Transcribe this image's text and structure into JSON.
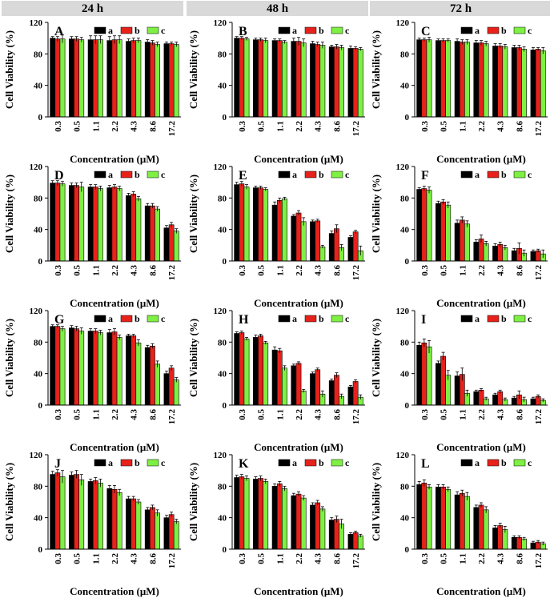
{
  "column_headers": [
    "24 h",
    "48 h",
    "72 h"
  ],
  "chart_data": [
    {
      "type": "bar",
      "label": "A",
      "ylabel": "Cell Viability (%)",
      "xlabel": "Concentration (μM)",
      "categories": [
        "0.3",
        "0.5",
        "1.1",
        "2.2",
        "4.3",
        "8.6",
        "17.2"
      ],
      "ylim": [
        0,
        120
      ],
      "yticks": [
        0,
        40,
        80,
        120
      ],
      "series": [
        {
          "name": "a",
          "color": "#000000",
          "values": [
            100,
            99,
            98,
            97,
            96,
            95,
            93
          ],
          "errors": [
            2,
            3,
            5,
            5,
            3,
            3,
            2
          ]
        },
        {
          "name": "b",
          "color": "#e8211b",
          "values": [
            99,
            99,
            98,
            98,
            97,
            94,
            93
          ],
          "errors": [
            3,
            3,
            5,
            5,
            3,
            3,
            2
          ]
        },
        {
          "name": "c",
          "color": "#7ef043",
          "values": [
            99,
            98,
            98,
            98,
            97,
            92,
            92
          ],
          "errors": [
            5,
            3,
            5,
            5,
            3,
            3,
            3
          ]
        }
      ]
    },
    {
      "type": "bar",
      "label": "B",
      "ylabel": "Cell Viability (%)",
      "xlabel": "Concentration (μM)",
      "categories": [
        "0.3",
        "0.5",
        "1.1",
        "2.2",
        "4.3",
        "8.6",
        "17.2"
      ],
      "ylim": [
        0,
        120
      ],
      "yticks": [
        0,
        40,
        80,
        120
      ],
      "series": [
        {
          "name": "a",
          "color": "#000000",
          "values": [
            100,
            98,
            97,
            96,
            93,
            89,
            87
          ],
          "errors": [
            2,
            2,
            2,
            4,
            3,
            2,
            3
          ]
        },
        {
          "name": "b",
          "color": "#e8211b",
          "values": [
            100,
            98,
            97,
            96,
            92,
            89,
            87
          ],
          "errors": [
            2,
            2,
            2,
            5,
            3,
            3,
            2
          ]
        },
        {
          "name": "c",
          "color": "#7ef043",
          "values": [
            99,
            97,
            95,
            94,
            91,
            88,
            86
          ],
          "errors": [
            2,
            3,
            2,
            5,
            4,
            3,
            2
          ]
        }
      ]
    },
    {
      "type": "bar",
      "label": "C",
      "ylabel": "Cell Viability (%)",
      "xlabel": "Concentration (μM)",
      "categories": [
        "0.3",
        "0.5",
        "1.1",
        "2.2",
        "4.3",
        "8.6",
        "17.2"
      ],
      "ylim": [
        0,
        120
      ],
      "yticks": [
        0,
        40,
        80,
        120
      ],
      "series": [
        {
          "name": "a",
          "color": "#000000",
          "values": [
            98,
            97,
            96,
            94,
            90,
            88,
            85
          ],
          "errors": [
            2,
            2,
            3,
            3,
            3,
            3,
            3
          ]
        },
        {
          "name": "b",
          "color": "#e8211b",
          "values": [
            98,
            97,
            95,
            94,
            90,
            88,
            86
          ],
          "errors": [
            2,
            2,
            3,
            3,
            3,
            3,
            2
          ]
        },
        {
          "name": "c",
          "color": "#7ef043",
          "values": [
            98,
            97,
            95,
            93,
            89,
            86,
            84
          ],
          "errors": [
            3,
            2,
            3,
            3,
            3,
            3,
            4
          ]
        }
      ]
    },
    {
      "type": "bar",
      "label": "D",
      "ylabel": "Cell Viability (%)",
      "xlabel": "Concentration (μM)",
      "categories": [
        "0.3",
        "0.5",
        "1.1",
        "2.2",
        "4.3",
        "8.6",
        "17.2"
      ],
      "ylim": [
        0,
        120
      ],
      "yticks": [
        0,
        40,
        80,
        120
      ],
      "series": [
        {
          "name": "a",
          "color": "#000000",
          "values": [
            99,
            96,
            94,
            93,
            83,
            70,
            42
          ],
          "errors": [
            3,
            3,
            3,
            3,
            3,
            3,
            3
          ]
        },
        {
          "name": "b",
          "color": "#e8211b",
          "values": [
            99,
            96,
            94,
            94,
            85,
            70,
            46
          ],
          "errors": [
            3,
            3,
            3,
            3,
            3,
            3,
            3
          ]
        },
        {
          "name": "c",
          "color": "#7ef043",
          "values": [
            98,
            94,
            92,
            92,
            79,
            66,
            38
          ],
          "errors": [
            3,
            6,
            3,
            3,
            3,
            3,
            3
          ]
        }
      ]
    },
    {
      "type": "bar",
      "label": "E",
      "ylabel": "Cell Viability (%)",
      "xlabel": "Concentration (μM)",
      "categories": [
        "0.3",
        "0.5",
        "1.1",
        "2.2",
        "4.3",
        "8.6",
        "17.2"
      ],
      "ylim": [
        0,
        120
      ],
      "yticks": [
        0,
        40,
        80,
        120
      ],
      "series": [
        {
          "name": "a",
          "color": "#000000",
          "values": [
            97,
            93,
            71,
            57,
            50,
            35,
            30
          ],
          "errors": [
            3,
            2,
            4,
            2,
            2,
            3,
            2
          ]
        },
        {
          "name": "b",
          "color": "#e8211b",
          "values": [
            98,
            93,
            77,
            61,
            51,
            41,
            37
          ],
          "errors": [
            3,
            2,
            3,
            3,
            2,
            5,
            2
          ]
        },
        {
          "name": "c",
          "color": "#7ef043",
          "values": [
            94,
            91,
            79,
            50,
            18,
            17,
            13
          ],
          "errors": [
            3,
            2,
            2,
            5,
            2,
            4,
            6
          ]
        }
      ]
    },
    {
      "type": "bar",
      "label": "F",
      "ylabel": "Cell Viability (%)",
      "xlabel": "Concentration (μM)",
      "categories": [
        "0.3",
        "0.5",
        "1.1",
        "2.2",
        "4.3",
        "8.6",
        "17.2"
      ],
      "ylim": [
        0,
        120
      ],
      "yticks": [
        0,
        40,
        80,
        120
      ],
      "series": [
        {
          "name": "a",
          "color": "#000000",
          "values": [
            91,
            73,
            48,
            24,
            19,
            13,
            12
          ],
          "errors": [
            2,
            3,
            4,
            3,
            3,
            3,
            2
          ]
        },
        {
          "name": "b",
          "color": "#e8211b",
          "values": [
            92,
            75,
            52,
            28,
            21,
            16,
            13
          ],
          "errors": [
            3,
            3,
            4,
            5,
            3,
            7,
            2
          ]
        },
        {
          "name": "c",
          "color": "#7ef043",
          "values": [
            90,
            71,
            47,
            22,
            17,
            10,
            9
          ],
          "errors": [
            4,
            4,
            4,
            3,
            3,
            4,
            5
          ]
        }
      ]
    },
    {
      "type": "bar",
      "label": "G",
      "ylabel": "Cell Viability (%)",
      "xlabel": "Concentration (μM)",
      "categories": [
        "0.3",
        "0.5",
        "1.1",
        "2.2",
        "4.3",
        "8.6",
        "17.2"
      ],
      "ylim": [
        0,
        120
      ],
      "yticks": [
        0,
        40,
        80,
        120
      ],
      "series": [
        {
          "name": "a",
          "color": "#000000",
          "values": [
            100,
            98,
            94,
            92,
            88,
            73,
            40
          ],
          "errors": [
            2,
            3,
            3,
            4,
            2,
            3,
            3
          ]
        },
        {
          "name": "b",
          "color": "#e8211b",
          "values": [
            100,
            97,
            94,
            93,
            88,
            75,
            47
          ],
          "errors": [
            2,
            3,
            3,
            4,
            2,
            3,
            3
          ]
        },
        {
          "name": "c",
          "color": "#7ef043",
          "values": [
            97,
            94,
            92,
            86,
            79,
            52,
            32
          ],
          "errors": [
            3,
            4,
            3,
            3,
            4,
            4,
            3
          ]
        }
      ]
    },
    {
      "type": "bar",
      "label": "H",
      "ylabel": "Cell Viability (%)",
      "xlabel": "Concentration (μM)",
      "categories": [
        "0.3",
        "0.5",
        "1.1",
        "2.2",
        "4.3",
        "8.6",
        "17.2"
      ],
      "ylim": [
        0,
        120
      ],
      "yticks": [
        0,
        40,
        80,
        120
      ],
      "series": [
        {
          "name": "a",
          "color": "#000000",
          "values": [
            91,
            86,
            70,
            50,
            40,
            31,
            23
          ],
          "errors": [
            2,
            3,
            4,
            2,
            2,
            2,
            2
          ]
        },
        {
          "name": "b",
          "color": "#e8211b",
          "values": [
            92,
            88,
            69,
            53,
            45,
            38,
            30
          ],
          "errors": [
            2,
            2,
            3,
            2,
            2,
            3,
            2
          ]
        },
        {
          "name": "c",
          "color": "#7ef043",
          "values": [
            84,
            79,
            47,
            18,
            14,
            11,
            10
          ],
          "errors": [
            2,
            2,
            3,
            2,
            4,
            3,
            3
          ]
        }
      ]
    },
    {
      "type": "bar",
      "label": "I",
      "ylabel": "Cell Viability (%)",
      "xlabel": "Concentration (μM)",
      "categories": [
        "0.3",
        "0.5",
        "1.1",
        "2.2",
        "4.3",
        "8.6",
        "17.2"
      ],
      "ylim": [
        0,
        120
      ],
      "yticks": [
        0,
        40,
        80,
        120
      ],
      "series": [
        {
          "name": "a",
          "color": "#000000",
          "values": [
            76,
            53,
            37,
            17,
            13,
            9,
            8
          ],
          "errors": [
            4,
            3,
            5,
            2,
            2,
            2,
            2
          ]
        },
        {
          "name": "b",
          "color": "#e8211b",
          "values": [
            79,
            62,
            39,
            19,
            17,
            13,
            11
          ],
          "errors": [
            5,
            5,
            8,
            2,
            2,
            5,
            2
          ]
        },
        {
          "name": "c",
          "color": "#7ef043",
          "values": [
            74,
            38,
            15,
            8,
            7,
            7,
            6
          ],
          "errors": [
            8,
            6,
            4,
            2,
            2,
            3,
            2
          ]
        }
      ]
    },
    {
      "type": "bar",
      "label": "J",
      "ylabel": "Cell Viability (%)",
      "xlabel": "Concentration (μM)",
      "categories": [
        "0.3",
        "0.5",
        "1.1",
        "2.2",
        "4.3",
        "8.6",
        "17.2"
      ],
      "ylim": [
        0,
        120
      ],
      "yticks": [
        0,
        40,
        80,
        120
      ],
      "series": [
        {
          "name": "a",
          "color": "#000000",
          "values": [
            95,
            94,
            86,
            77,
            64,
            50,
            40
          ],
          "errors": [
            4,
            4,
            3,
            4,
            3,
            3,
            3
          ]
        },
        {
          "name": "b",
          "color": "#e8211b",
          "values": [
            97,
            95,
            87,
            76,
            64,
            53,
            44
          ],
          "errors": [
            4,
            5,
            4,
            5,
            3,
            3,
            3
          ]
        },
        {
          "name": "c",
          "color": "#7ef043",
          "values": [
            92,
            88,
            84,
            72,
            60,
            46,
            35
          ],
          "errors": [
            8,
            7,
            5,
            4,
            3,
            4,
            3
          ]
        }
      ]
    },
    {
      "type": "bar",
      "label": "K",
      "ylabel": "Cell Viability (%)",
      "xlabel": "Concentration (μM)",
      "categories": [
        "0.3",
        "0.5",
        "1.1",
        "2.2",
        "4.3",
        "8.6",
        "17.2"
      ],
      "ylim": [
        0,
        120
      ],
      "yticks": [
        0,
        40,
        80,
        120
      ],
      "series": [
        {
          "name": "a",
          "color": "#000000",
          "values": [
            91,
            89,
            80,
            68,
            56,
            37,
            19
          ],
          "errors": [
            3,
            3,
            3,
            3,
            3,
            3,
            2
          ]
        },
        {
          "name": "b",
          "color": "#e8211b",
          "values": [
            92,
            90,
            83,
            70,
            59,
            38,
            21
          ],
          "errors": [
            3,
            3,
            3,
            3,
            3,
            4,
            2
          ]
        },
        {
          "name": "c",
          "color": "#7ef043",
          "values": [
            90,
            86,
            77,
            65,
            51,
            32,
            17
          ],
          "errors": [
            3,
            3,
            3,
            3,
            3,
            6,
            2
          ]
        }
      ]
    },
    {
      "type": "bar",
      "label": "L",
      "ylabel": "Cell Viability (%)",
      "xlabel": "Concentration (μM)",
      "categories": [
        "0.3",
        "0.5",
        "1.1",
        "2.2",
        "4.3",
        "8.6",
        "17.2"
      ],
      "ylim": [
        0,
        120
      ],
      "yticks": [
        0,
        40,
        80,
        120
      ],
      "series": [
        {
          "name": "a",
          "color": "#000000",
          "values": [
            82,
            79,
            69,
            53,
            27,
            15,
            8
          ],
          "errors": [
            4,
            3,
            4,
            3,
            3,
            2,
            2
          ]
        },
        {
          "name": "b",
          "color": "#e8211b",
          "values": [
            84,
            79,
            71,
            56,
            30,
            15,
            9
          ],
          "errors": [
            4,
            3,
            4,
            3,
            3,
            2,
            2
          ]
        },
        {
          "name": "c",
          "color": "#7ef043",
          "values": [
            79,
            76,
            67,
            50,
            25,
            13,
            7
          ],
          "errors": [
            3,
            3,
            5,
            4,
            4,
            2,
            2
          ]
        }
      ]
    }
  ]
}
